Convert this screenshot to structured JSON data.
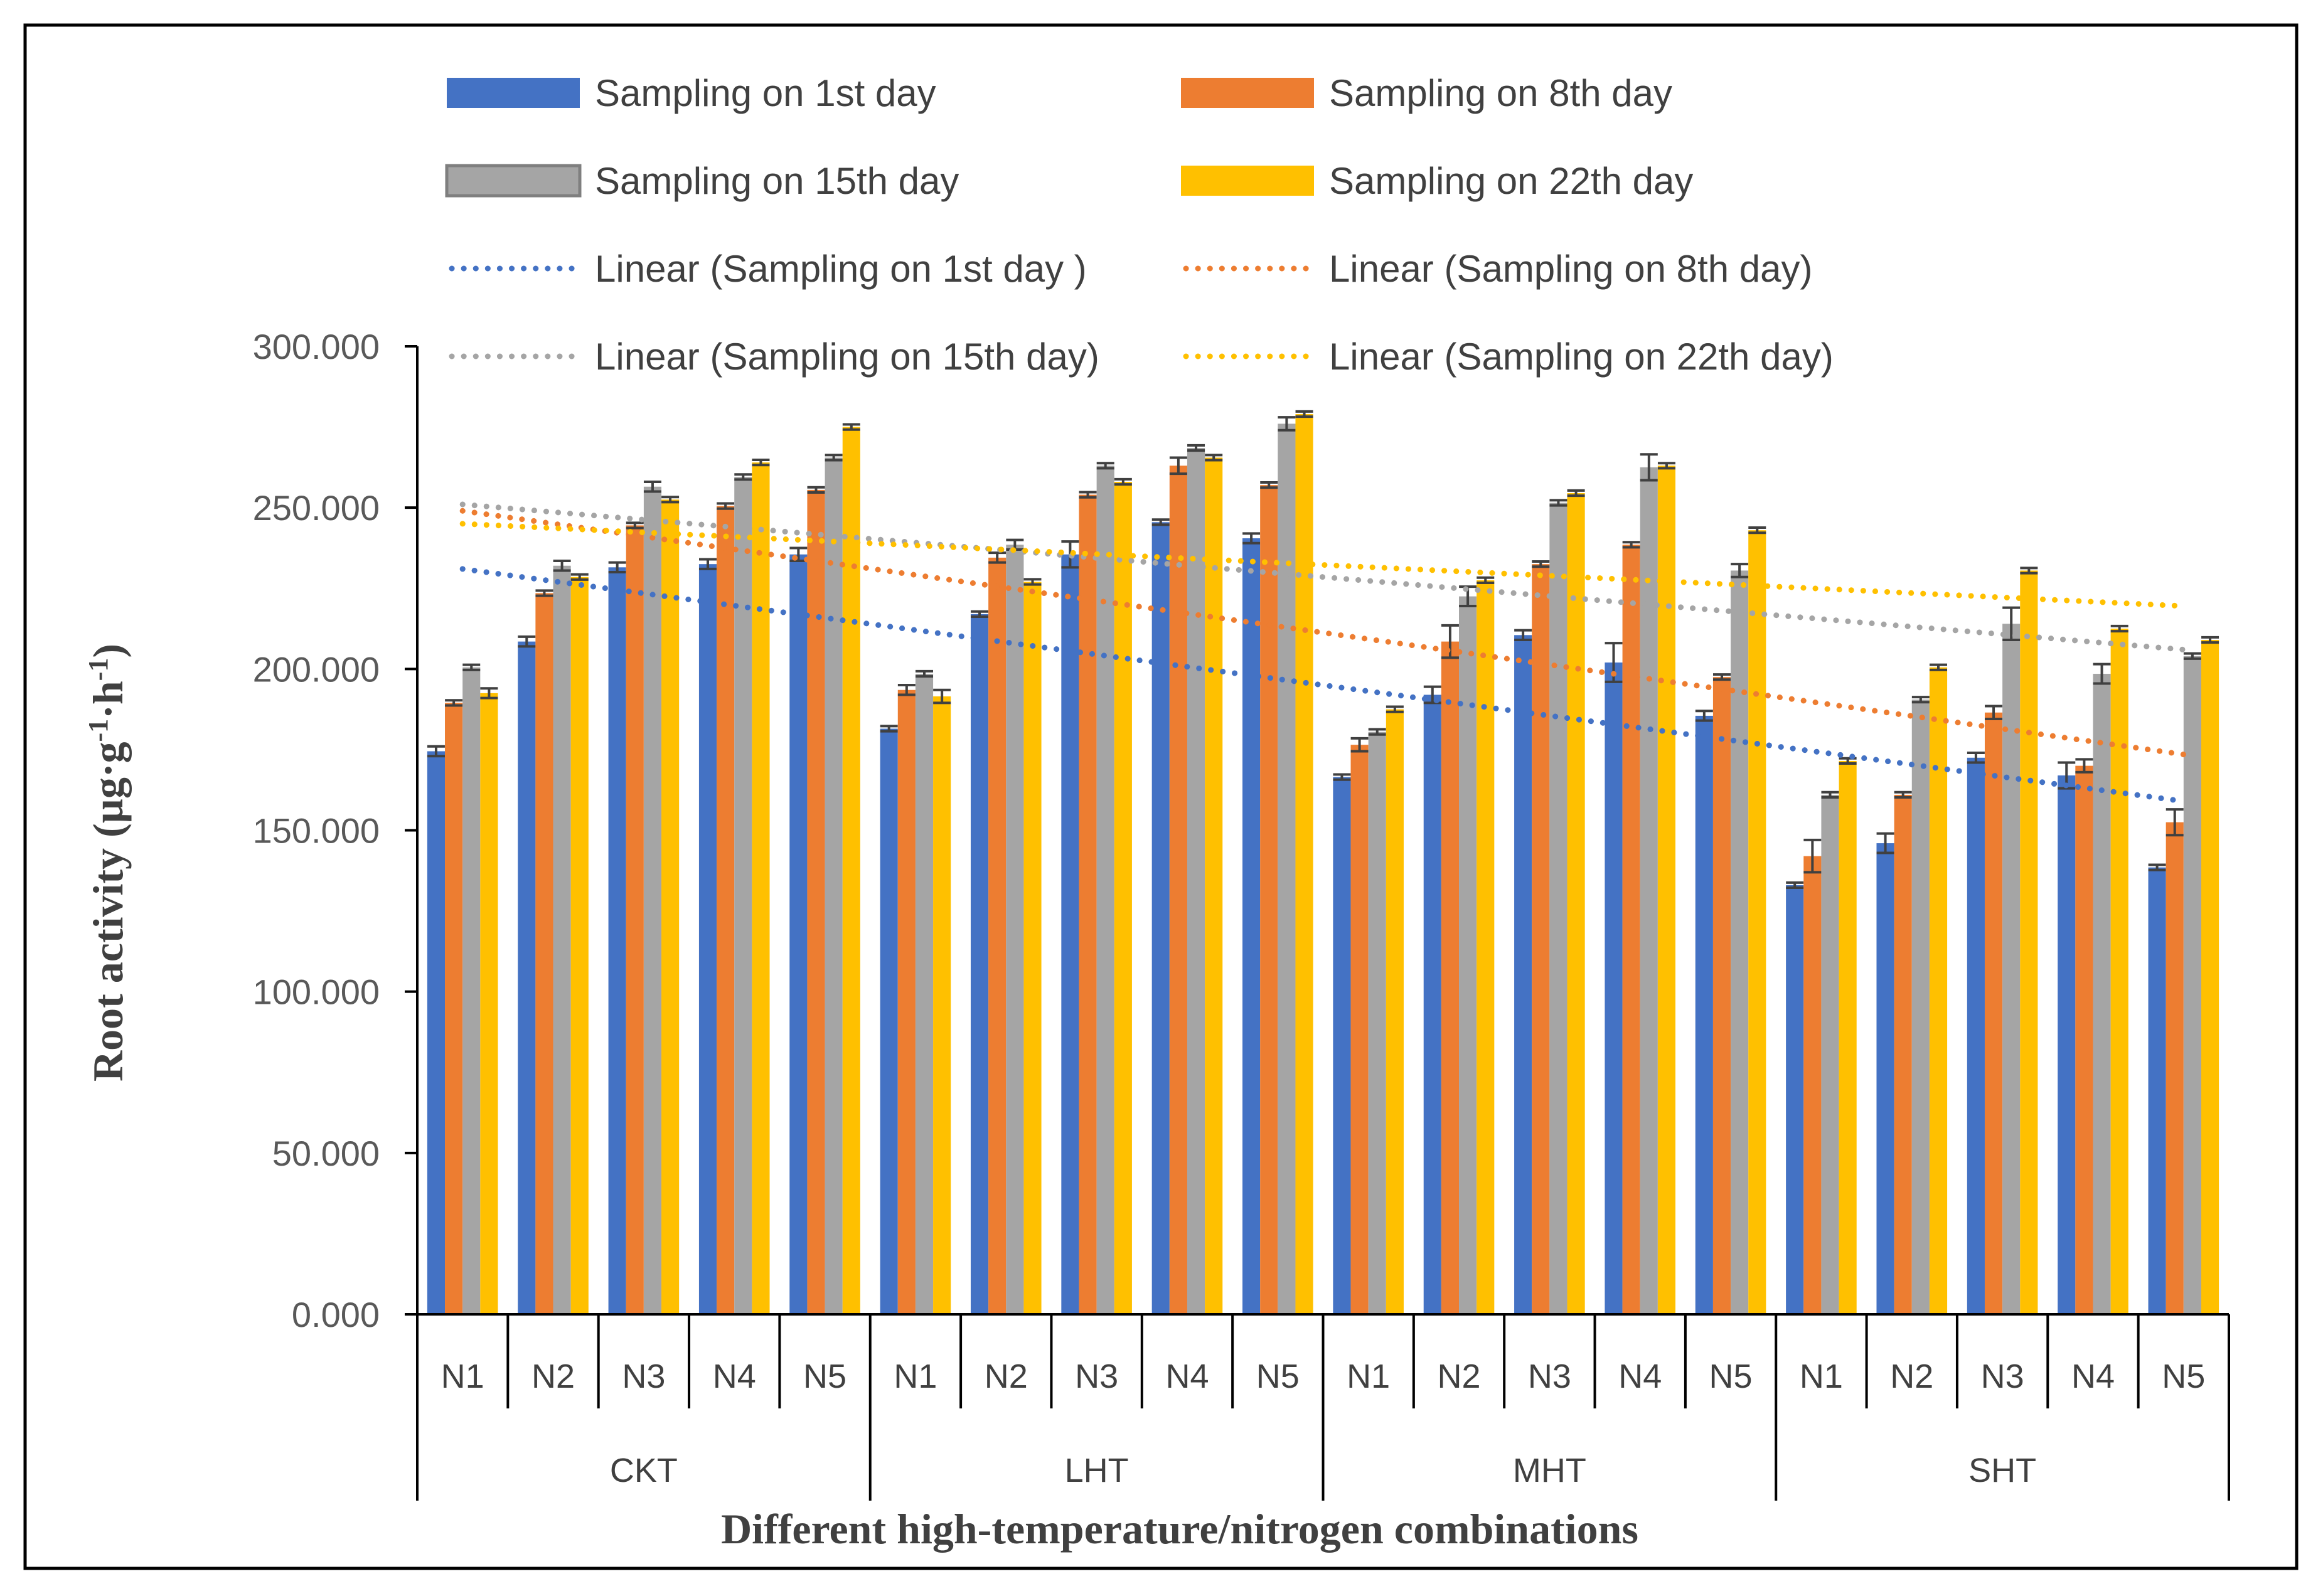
{
  "chart_data": {
    "type": "bar",
    "xlabel": "Different high-temperature/nitrogen combinations",
    "ylabel": "Root activity (µg·g",
    "ylabel_parts": {
      "base": "Root activity (µg·g",
      "exp1": "-1",
      "mid": "·h",
      "exp2": "-1",
      "close": ")"
    },
    "ylim": [
      0,
      300
    ],
    "yticks": [
      0,
      50,
      100,
      150,
      200,
      250,
      300
    ],
    "ytick_labels": [
      "0.000",
      "50.000",
      "100.000",
      "150.000",
      "200.000",
      "250.000",
      "300.000"
    ],
    "groups": [
      "CKT",
      "LHT",
      "MHT",
      "SHT"
    ],
    "categories": [
      "N1",
      "N2",
      "N3",
      "N4",
      "N5",
      "N1",
      "N2",
      "N3",
      "N4",
      "N5",
      "N1",
      "N2",
      "N3",
      "N4",
      "N5",
      "N1",
      "N2",
      "N3",
      "N4",
      "N5"
    ],
    "series": [
      {
        "name": "Sampling on 1st day",
        "color": "#4472C4",
        "values": [
          174.5,
          208.5,
          231.5,
          232.5,
          235.5,
          181.5,
          217.0,
          235.5,
          245.5,
          240.5,
          166.5,
          192.0,
          210.5,
          202.0,
          185.5,
          133.0,
          146.0,
          172.5,
          167.0,
          138.5
        ],
        "errors": [
          1.5,
          1.5,
          1.5,
          1.5,
          2.0,
          0.8,
          0.8,
          4.0,
          0.8,
          1.5,
          0.8,
          2.5,
          1.5,
          6.0,
          1.5,
          0.8,
          3.0,
          1.5,
          4.0,
          0.8
        ]
      },
      {
        "name": "Sampling on 8th day",
        "color": "#ED7D31",
        "values": [
          189.5,
          223.5,
          244.5,
          250.5,
          255.5,
          193.5,
          234.5,
          254.0,
          263.0,
          257.0,
          176.5,
          208.5,
          232.5,
          238.5,
          197.5,
          142.0,
          161.0,
          186.5,
          170.0,
          152.5
        ],
        "errors": [
          0.8,
          0.8,
          0.8,
          0.8,
          0.8,
          1.5,
          1.5,
          0.8,
          2.5,
          0.8,
          2.0,
          5.0,
          0.8,
          0.8,
          0.8,
          5.0,
          0.8,
          2.0,
          2.0,
          4.0
        ]
      },
      {
        "name": "Sampling on 15th day",
        "color": "#A5A5A5",
        "values": [
          200.5,
          232.0,
          256.5,
          259.5,
          265.5,
          198.5,
          238.5,
          263.0,
          268.5,
          276.0,
          180.5,
          222.5,
          251.5,
          262.5,
          230.5,
          161.0,
          190.5,
          214.0,
          198.5,
          204.0
        ],
        "errors": [
          0.8,
          1.5,
          1.5,
          0.8,
          0.8,
          0.8,
          1.5,
          0.8,
          0.8,
          2.0,
          0.8,
          3.0,
          0.8,
          4.0,
          2.0,
          0.8,
          0.8,
          5.0,
          3.0,
          0.8
        ]
      },
      {
        "name": "Sampling on 22th day",
        "color": "#FFC000",
        "values": [
          192.5,
          228.5,
          252.5,
          264.0,
          275.0,
          191.5,
          227.0,
          258.0,
          265.5,
          279.0,
          187.5,
          227.5,
          254.5,
          263.0,
          243.0,
          171.5,
          200.5,
          230.5,
          212.5,
          209.0
        ],
        "errors": [
          1.5,
          0.8,
          0.8,
          0.8,
          0.8,
          2.0,
          0.8,
          0.8,
          0.8,
          0.8,
          0.8,
          0.8,
          0.8,
          0.8,
          0.8,
          0.8,
          0.8,
          0.8,
          0.8,
          0.8
        ]
      }
    ],
    "trendlines": [
      {
        "name": "Linear (Sampling on 1st day )",
        "color": "#4472C4",
        "start": 231.0,
        "end": 159.0
      },
      {
        "name": "Linear (Sampling on 8th day)",
        "color": "#ED7D31",
        "start": 249.0,
        "end": 173.5
      },
      {
        "name": "Linear (Sampling on 15th day)",
        "color": "#A5A5A5",
        "start": 251.0,
        "end": 206.0
      },
      {
        "name": "Linear (Sampling on 22th day)",
        "color": "#FFC000",
        "start": 245.0,
        "end": 219.5
      }
    ],
    "legend": {
      "position": "top",
      "entries": [
        {
          "label": "Sampling on 1st day",
          "kind": "bar",
          "color": "#4472C4"
        },
        {
          "label": "Sampling on 8th day",
          "kind": "bar",
          "color": "#ED7D31"
        },
        {
          "label": "Sampling on 15th day",
          "kind": "bar",
          "color": "#A5A5A5"
        },
        {
          "label": "Sampling on 22th day",
          "kind": "bar",
          "color": "#FFC000"
        },
        {
          "label": "Linear (Sampling on 1st day )",
          "kind": "line",
          "color": "#4472C4"
        },
        {
          "label": "Linear (Sampling on 8th day)",
          "kind": "line",
          "color": "#ED7D31"
        },
        {
          "label": "Linear (Sampling on 15th day)",
          "kind": "line",
          "color": "#A5A5A5"
        },
        {
          "label": "Linear (Sampling on 22th day)",
          "kind": "line",
          "color": "#FFC000"
        }
      ]
    }
  }
}
